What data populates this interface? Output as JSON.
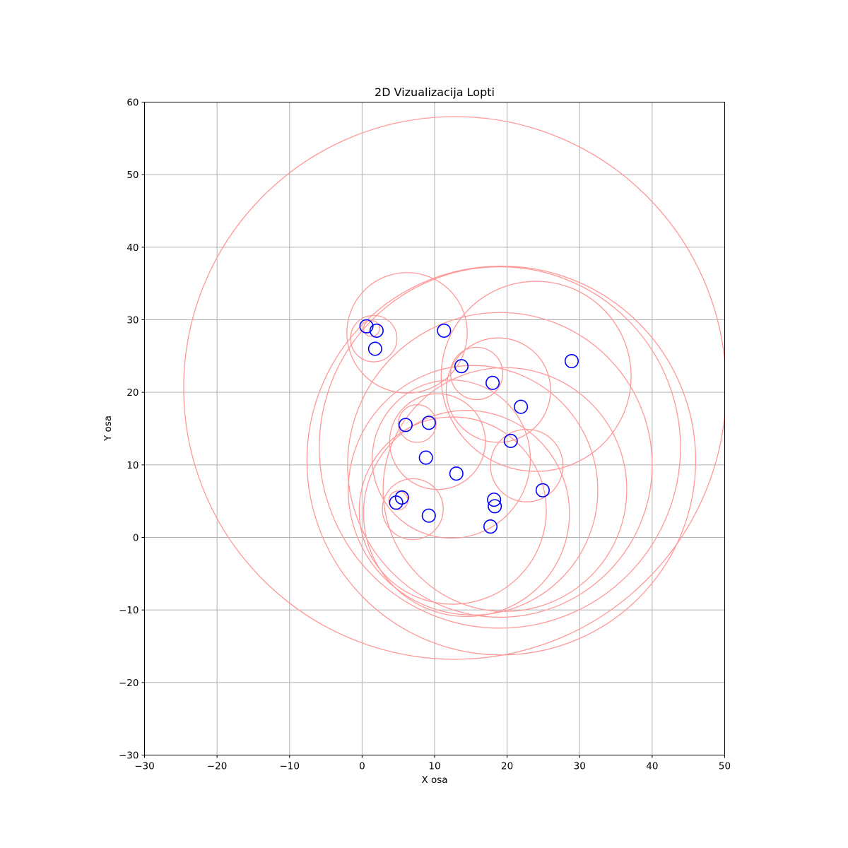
{
  "chart_data": {
    "type": "scatter",
    "title": "2D Vizualizacija Lopti",
    "xlabel": "X osa",
    "ylabel": "Y osa",
    "xlim": [
      -30,
      50
    ],
    "ylim": [
      -30,
      60
    ],
    "xticks": [
      -30,
      -20,
      -10,
      0,
      10,
      20,
      30,
      40,
      50
    ],
    "yticks": [
      -30,
      -20,
      -10,
      0,
      10,
      20,
      30,
      40,
      50,
      60
    ],
    "xtick_labels": [
      "−30",
      "−20",
      "−10",
      "0",
      "10",
      "20",
      "30",
      "40",
      "50"
    ],
    "ytick_labels": [
      "−30",
      "−20",
      "−10",
      "0",
      "10",
      "20",
      "30",
      "40",
      "50",
      "60"
    ],
    "grid": true,
    "colors": {
      "points": "#0000ff",
      "spheres": "#ff9999",
      "grid": "#b0b0b0"
    },
    "points": [
      {
        "x": 0.6,
        "y": 29.1
      },
      {
        "x": 2.0,
        "y": 28.5
      },
      {
        "x": 1.8,
        "y": 26.0
      },
      {
        "x": 11.3,
        "y": 28.5
      },
      {
        "x": 13.7,
        "y": 23.6
      },
      {
        "x": 18.0,
        "y": 21.3
      },
      {
        "x": 28.9,
        "y": 24.3
      },
      {
        "x": 21.9,
        "y": 18.0
      },
      {
        "x": 6.0,
        "y": 15.5
      },
      {
        "x": 9.2,
        "y": 15.8
      },
      {
        "x": 20.5,
        "y": 13.3
      },
      {
        "x": 8.8,
        "y": 11.0
      },
      {
        "x": 13.0,
        "y": 8.8
      },
      {
        "x": 24.9,
        "y": 6.5
      },
      {
        "x": 5.5,
        "y": 5.5
      },
      {
        "x": 4.7,
        "y": 4.8
      },
      {
        "x": 18.2,
        "y": 5.2
      },
      {
        "x": 18.3,
        "y": 4.3
      },
      {
        "x": 9.2,
        "y": 3.0
      },
      {
        "x": 17.7,
        "y": 1.5
      }
    ],
    "point_radius": 0.9,
    "spheres": [
      {
        "cx": 1.3,
        "cy": 28.8,
        "r": 1.1
      },
      {
        "cx": 1.6,
        "cy": 27.4,
        "r": 3.2
      },
      {
        "cx": 6.2,
        "cy": 28.2,
        "r": 8.3
      },
      {
        "cx": 12.8,
        "cy": 20.6,
        "r": 37.4
      },
      {
        "cx": 19.2,
        "cy": 10.6,
        "r": 26.8
      },
      {
        "cx": 19.0,
        "cy": 12.4,
        "r": 24.9
      },
      {
        "cx": 15.8,
        "cy": 22.6,
        "r": 3.6
      },
      {
        "cx": 18.8,
        "cy": 20.3,
        "r": 7.2
      },
      {
        "cx": 24.0,
        "cy": 22.2,
        "r": 13.1
      },
      {
        "cx": 19.0,
        "cy": 10.0,
        "r": 21.0
      },
      {
        "cx": 7.6,
        "cy": 15.7,
        "r": 2.6
      },
      {
        "cx": 10.4,
        "cy": 13.2,
        "r": 6.6
      },
      {
        "cx": 12.3,
        "cy": 10.8,
        "r": 10.9
      },
      {
        "cx": 22.7,
        "cy": 9.9,
        "r": 5.0
      },
      {
        "cx": 19.7,
        "cy": 6.6,
        "r": 16.8
      },
      {
        "cx": 15.3,
        "cy": 6.5,
        "r": 17.2
      },
      {
        "cx": 14.4,
        "cy": 3.3,
        "r": 14.2
      },
      {
        "cx": 12.5,
        "cy": 3.7,
        "r": 12.9
      },
      {
        "cx": 5.0,
        "cy": 5.1,
        "r": 1.3
      },
      {
        "cx": 7.0,
        "cy": 3.9,
        "r": 4.2
      }
    ]
  }
}
